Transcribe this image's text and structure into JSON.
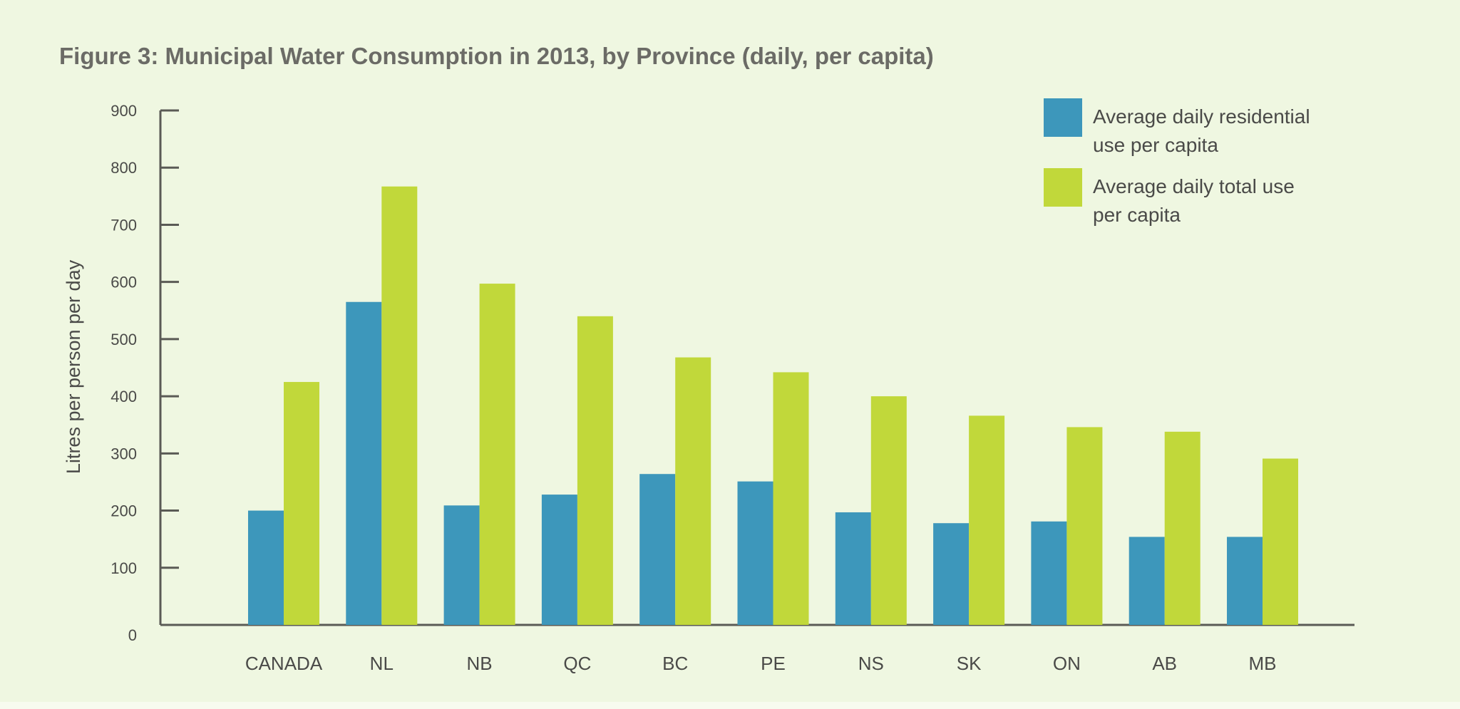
{
  "chart_data": {
    "type": "bar",
    "title": "Figure 3: Municipal Water Consumption in 2013, by Province (daily, per capita)",
    "xlabel": "",
    "ylabel": "Litres per person per day",
    "ylim": [
      0,
      900
    ],
    "yticks": [
      "0",
      "100",
      "200",
      "300",
      "400",
      "500",
      "600",
      "700",
      "800",
      "900"
    ],
    "grid": false,
    "legend_position": "top-right",
    "categories": [
      "CANADA",
      "NL",
      "NB",
      "QC",
      "BC",
      "PE",
      "NS",
      "SK",
      "ON",
      "AB",
      "MB"
    ],
    "series": [
      {
        "name": "Average daily residential use per capita",
        "name_lines": [
          "Average daily residential",
          "use per capita"
        ],
        "color": "#3d97bb",
        "values": [
          200,
          565,
          209,
          228,
          264,
          251,
          197,
          178,
          181,
          154,
          154
        ]
      },
      {
        "name": "Average daily total use per capita",
        "name_lines": [
          "Average daily total use",
          "per capita"
        ],
        "color": "#c1d83a",
        "values": [
          425,
          767,
          597,
          540,
          468,
          442,
          400,
          366,
          346,
          338,
          291
        ]
      }
    ]
  }
}
